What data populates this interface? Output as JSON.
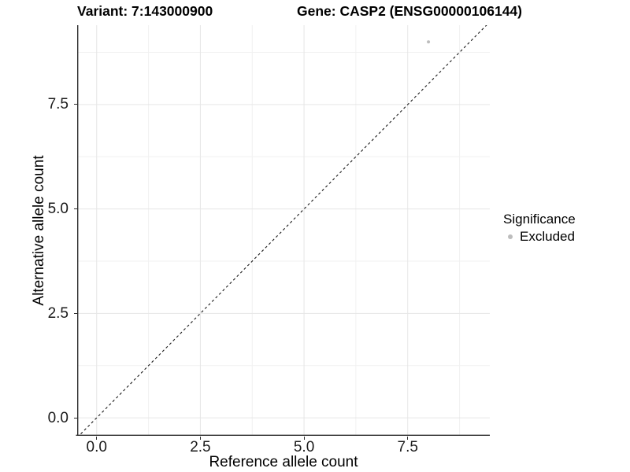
{
  "header": {
    "variant_title": "Variant: 7:143000900",
    "gene_title": "Gene: CASP2 (ENSG00000106144)"
  },
  "colors": {
    "background": "#ffffff",
    "grid_major": "#e6e6e6",
    "grid_minor": "#f1f1f1",
    "axis_line": "#2f2f2f",
    "tick_mark": "#2f2f2f",
    "tick_label": "#1a1a1a",
    "point": "#bdbdbd",
    "reference_line": "#1a1a1a"
  },
  "chart_data": {
    "type": "scatter",
    "title_left": "Variant: 7:143000900",
    "title_right": "Gene: CASP2 (ENSG00000106144)",
    "xlabel": "Reference allele count",
    "ylabel": "Alternative allele count",
    "xlim": [
      -0.47,
      9.48
    ],
    "ylim": [
      -0.43,
      9.4
    ],
    "x_major_ticks": [
      0,
      2.5,
      5,
      7.5
    ],
    "x_tick_labels": [
      "0.0",
      "2.5",
      "5.0",
      "7.5"
    ],
    "x_minor_ticks": [
      1.25,
      3.75,
      6.25,
      8.75
    ],
    "y_major_ticks": [
      0,
      2.5,
      5,
      7.5
    ],
    "y_tick_labels": [
      "0.0",
      "2.5",
      "5.0",
      "7.5"
    ],
    "y_minor_ticks": [
      1.25,
      3.75,
      6.25,
      8.75
    ],
    "grid": true,
    "series": [
      {
        "name": "Excluded",
        "color": "#bdbdbd",
        "point_radius": 2,
        "points": [
          {
            "x": 8,
            "y": 9
          }
        ]
      }
    ],
    "reference_line": {
      "slope": 1,
      "intercept": 0,
      "style": "dashed",
      "width": 1.1,
      "dash": "3.2,3.2"
    },
    "legend": {
      "title": "Significance",
      "position": "right",
      "entries": [
        {
          "label": "Excluded",
          "color": "#bdbdbd"
        }
      ]
    }
  }
}
